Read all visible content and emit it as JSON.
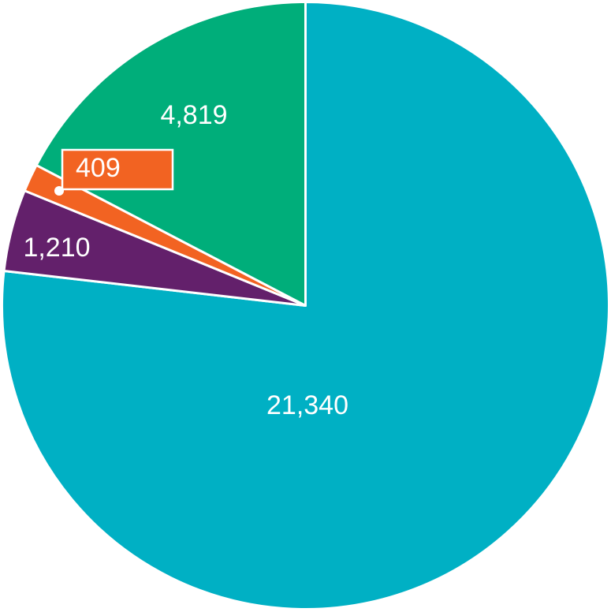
{
  "chart_data": {
    "type": "pie",
    "slices": [
      {
        "value": 21340,
        "label": "21,340",
        "color": "#00B0C4"
      },
      {
        "value": 1210,
        "label": "1,210",
        "color": "#63206B"
      },
      {
        "value": 409,
        "label": "409",
        "color": "#F26322"
      },
      {
        "value": 4819,
        "label": "4,819",
        "color": "#00AE7A"
      }
    ]
  }
}
